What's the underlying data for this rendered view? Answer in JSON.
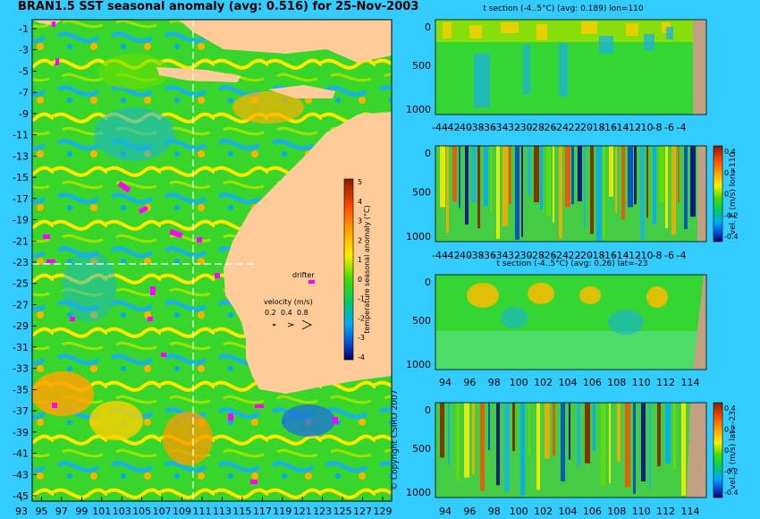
{
  "main_title": "BRAN1.5 SST seasonal anomaly (avg: 0.516) for 25-Nov-2003",
  "copyright": "© Copyright CSIRO 2007",
  "map": {
    "lat_ticks": [
      "-1",
      "-3",
      "-5",
      "-7",
      "-9",
      "-11",
      "-13",
      "-15",
      "-17",
      "-19",
      "-21",
      "-23",
      "-25",
      "-27",
      "-29",
      "-31",
      "-33",
      "-35",
      "-37",
      "-39",
      "-41",
      "-43",
      "-45"
    ],
    "lon_ticks": [
      "93",
      "95",
      "97",
      "99",
      "101",
      "103",
      "105",
      "107",
      "109",
      "111",
      "113",
      "115",
      "117",
      "119",
      "121",
      "123",
      "125",
      "127",
      "129"
    ],
    "colorbar_label": "temperature seasonal anomaly (°C)",
    "colorbar_ticks": [
      "5",
      "4",
      "3",
      "2",
      "1",
      "0",
      "-1",
      "-2",
      "-3",
      "-4"
    ],
    "drifter_label": "drifter",
    "velocity_label": "velocity (m/s)",
    "velocity_values": [
      "0.2",
      "0.4",
      "0.8"
    ]
  },
  "panels": {
    "p1_title": "t section (-4..5°C) (avg: 0.189) lon=110",
    "p3_title": "t section (-4..5°C) (avg: 0.26) lat=-23",
    "p2_cbar_label": "vel. E (m/s) lon=110",
    "p4_cbar_label": "vel. S (m/s) lat=-23",
    "depth_ticks": [
      "0",
      "500",
      "1000"
    ],
    "lat_section_ticks": [
      "-44",
      "-42",
      "-40",
      "-38",
      "-36",
      "-34",
      "-32",
      "-30",
      "-28",
      "-26",
      "-24",
      "-22",
      "-20",
      "-18",
      "-16",
      "-14",
      "-12",
      "-10",
      "-8",
      "-6",
      "-4"
    ],
    "lon_section_ticks": [
      "94",
      "96",
      "98",
      "100",
      "102",
      "104",
      "106",
      "108",
      "110",
      "112",
      "114"
    ],
    "vel_cbar_ticks": [
      "0.4",
      "0.2",
      "0",
      "-0.2",
      "-0.4"
    ]
  },
  "chart_data": [
    {
      "type": "heatmap",
      "title": "BRAN1.5 SST seasonal anomaly (avg: 0.516) for 25-Nov-2003",
      "xlim": [
        93,
        130
      ],
      "ylim": [
        -45,
        0
      ],
      "colorbar_range": [
        -4,
        5
      ],
      "colorbar_label": "temperature seasonal anomaly (°C)",
      "section_lines": {
        "lon": 110,
        "lat": -23
      }
    },
    {
      "type": "heatmap",
      "title": "t section (-4..5°C) (avg: 0.189) lon=110",
      "xlim": [
        -45,
        -1
      ],
      "ylim": [
        1050,
        0
      ]
    },
    {
      "type": "heatmap",
      "title": "",
      "xlim": [
        -45,
        -1
      ],
      "ylim": [
        1050,
        0
      ],
      "colorbar_label": "vel. E (m/s) lon=110",
      "colorbar_range": [
        -0.4,
        0.4
      ]
    },
    {
      "type": "heatmap",
      "title": "t section (-4..5°C) (avg: 0.26) lat=-23",
      "xlim": [
        93,
        115
      ],
      "ylim": [
        1050,
        0
      ]
    },
    {
      "type": "heatmap",
      "title": "",
      "xlim": [
        93,
        115
      ],
      "ylim": [
        1050,
        0
      ],
      "colorbar_label": "vel. S (m/s) lat=-23",
      "colorbar_range": [
        -0.4,
        0.4
      ]
    }
  ]
}
